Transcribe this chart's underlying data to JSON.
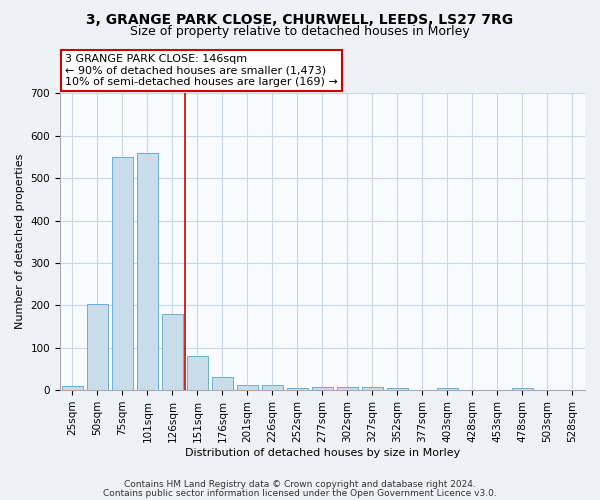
{
  "title1": "3, GRANGE PARK CLOSE, CHURWELL, LEEDS, LS27 7RG",
  "title2": "Size of property relative to detached houses in Morley",
  "xlabel": "Distribution of detached houses by size in Morley",
  "ylabel": "Number of detached properties",
  "categories": [
    "25sqm",
    "50sqm",
    "75sqm",
    "101sqm",
    "126sqm",
    "151sqm",
    "176sqm",
    "201sqm",
    "226sqm",
    "252sqm",
    "277sqm",
    "302sqm",
    "327sqm",
    "352sqm",
    "377sqm",
    "403sqm",
    "428sqm",
    "453sqm",
    "478sqm",
    "503sqm",
    "528sqm"
  ],
  "values": [
    10,
    204,
    550,
    560,
    180,
    80,
    30,
    13,
    12,
    5,
    8,
    8,
    8,
    5,
    0,
    5,
    0,
    0,
    5,
    0,
    0
  ],
  "bar_color": "#c9dcea",
  "bar_edge_color": "#6aaed6",
  "red_line_x": 4.5,
  "ylim": [
    0,
    700
  ],
  "yticks": [
    0,
    100,
    200,
    300,
    400,
    500,
    600,
    700
  ],
  "annotation_text": "3 GRANGE PARK CLOSE: 146sqm\n← 90% of detached houses are smaller (1,473)\n10% of semi-detached houses are larger (169) →",
  "annotation_box_color": "white",
  "annotation_box_edge": "#cc0000",
  "footer1": "Contains HM Land Registry data © Crown copyright and database right 2024.",
  "footer2": "Contains public sector information licensed under the Open Government Licence v3.0.",
  "background_color": "#eef2f7",
  "plot_bg_color": "#f8fbff",
  "grid_color": "#c8d8e8",
  "title1_fontsize": 10,
  "title2_fontsize": 9,
  "xlabel_fontsize": 8,
  "ylabel_fontsize": 8,
  "tick_fontsize": 7.5,
  "annot_fontsize": 8
}
